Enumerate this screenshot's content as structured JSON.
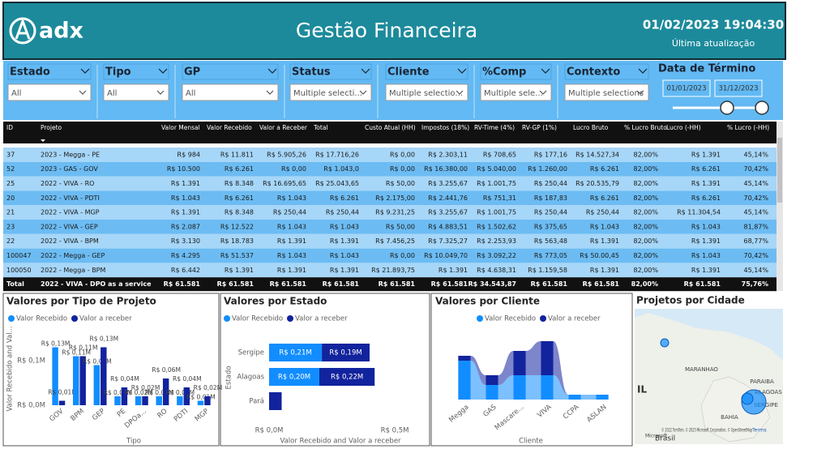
{
  "header": {
    "logo": "adx",
    "title": "Gestão Financeira",
    "timestamp": "01/02/2023 19:04:30",
    "timestamp_label": "Última atualização"
  },
  "filters": [
    {
      "label": "Estado",
      "value": "All"
    },
    {
      "label": "Tipo",
      "value": "All"
    },
    {
      "label": "GP",
      "value": "All"
    },
    {
      "label": "Status",
      "value": "Multiple selecti..."
    },
    {
      "label": "Cliente",
      "value": "Multiple selectio..."
    },
    {
      "label": "%Comp",
      "value": "Multiple sele..."
    },
    {
      "label": "Contexto",
      "value": "Multiple selections"
    }
  ],
  "date_filter": {
    "label": "Data de Término",
    "start": "01/01/2023",
    "end": "31/12/2023"
  },
  "table": {
    "columns": [
      "ID",
      "Projeto",
      "Valor Mensal",
      "Valor Recebido",
      "Valor a Receber",
      "Total",
      "Custo Atual (HH)",
      "Impostos (18%)",
      "RV-Time (4%)",
      "RV-GP (1%)",
      "Lucro Bruto",
      "% Lucro Bruto",
      "Lucro (-HH)",
      "% Lucro (-HH)"
    ],
    "rows": [
      [
        "37",
        "2023 - Megga - PE",
        "R$ 984",
        "R$ 11.811",
        "R$ 5.905,26",
        "R$ 17.716,26",
        "R$ 0,00",
        "R$ 2.303,11",
        "R$ 708,65",
        "R$ 177,16",
        "R$ 14.527,34",
        "82,00%",
        "R$ 1.391",
        "45,14%"
      ],
      [
        "52",
        "2023 - GAS - GOV",
        "R$ 10.500",
        "R$ 6.261",
        "R$ 0,00",
        "R$ 1.043,0",
        "R$ 0,00",
        "R$ 16.380,00",
        "R$ 5.040,00",
        "R$ 1.260,00",
        "R$ 6.261",
        "82,00%",
        "R$ 6.261",
        "70,42%"
      ],
      [
        "25",
        "2022 - VIVA - RO",
        "R$ 1.391",
        "R$ 8.348",
        "R$ 16.695,65",
        "R$ 25.043,65",
        "R$ 50,00",
        "R$ 3.255,67",
        "R$ 1.001,75",
        "R$ 250,44",
        "R$ 20.535,79",
        "82,00%",
        "R$ 1.391",
        "45,14%"
      ],
      [
        "20",
        "2022 - VIVA - PDTI",
        "R$ 1.043",
        "R$ 6.261",
        "R$ 1.043",
        "R$ 6.261",
        "R$ 2.175,00",
        "R$ 2.441,76",
        "R$ 751,31",
        "R$ 187,83",
        "R$ 6.261",
        "82,00%",
        "R$ 6.261",
        "70,42%"
      ],
      [
        "21",
        "2022 - VIVA - MGP",
        "R$ 1.391",
        "R$ 8.348",
        "R$ 250,44",
        "R$ 250,44",
        "R$ 9.231,25",
        "R$ 3.255,67",
        "R$ 1.001,75",
        "R$ 250,44",
        "R$ 250,44",
        "82,00%",
        "R$ 11.304,54",
        "45,14%"
      ],
      [
        "23",
        "2022 - VIVA - GEP",
        "R$ 2.087",
        "R$ 12.522",
        "R$ 1.043",
        "R$ 1.043",
        "R$ 50,00",
        "R$ 4.883,51",
        "R$ 1.502,62",
        "R$ 375,65",
        "R$ 1.043",
        "82,00%",
        "R$ 1.043",
        "81,87%"
      ],
      [
        "22",
        "2022 - VIVA - BPM",
        "R$ 3.130",
        "R$ 18.783",
        "R$ 1.391",
        "R$ 1.391",
        "R$ 7.456,25",
        "R$ 7.325,27",
        "R$ 2.253,93",
        "R$ 563,48",
        "R$ 1.391",
        "82,00%",
        "R$ 1.391",
        "68,77%"
      ],
      [
        "100047",
        "2022 - Megga - GEP",
        "R$ 4.295",
        "R$ 51.537",
        "R$ 1.043",
        "R$ 1.043",
        "R$ 0,00",
        "R$ 10.049,70",
        "R$ 3.092,22",
        "R$ 773,05",
        "R$ 50.00,45",
        "82,00%",
        "R$ 1.043",
        "70,42%"
      ],
      [
        "100050",
        "2022 - Megga - BPM",
        "R$ 6.442",
        "R$ 1.391",
        "R$ 1.391",
        "R$ 1.391",
        "R$ 21.893,75",
        "R$ 1.391",
        "R$ 4.638,31",
        "R$ 1.159,58",
        "R$ 1.391",
        "82,00%",
        "R$ 1.391",
        "45,14%"
      ]
    ],
    "total": [
      "Total",
      "2022 - VIVA - DPO as a service",
      "R$ 61.581",
      "R$ 61.581",
      "R$ 61.581",
      "R$ 61.581",
      "R$ 61.581",
      "R$ 61.581",
      "R$ 34.543,87",
      "R$ 61.581",
      "R$ 61.581",
      "82,00%",
      "R$ 61.581",
      "75,76%"
    ]
  },
  "chart_data": [
    {
      "type": "bar",
      "title": "Valores por Tipo de Projeto",
      "x_label": "Tipo",
      "y_label": "Valor Recebido and Val...",
      "categories": [
        "GOV",
        "BPM",
        "GEP",
        "PE",
        "DPOa...",
        "RO",
        "PDTI",
        "MGP"
      ],
      "series": [
        {
          "name": "Valor Recebido",
          "color": "#118dff",
          "values": [
            0.13,
            0.11,
            0.09,
            0.02,
            0.02,
            0.02,
            0.02,
            0.01
          ],
          "value_labels": [
            "R$ 0,13M",
            "R$ 0,11M",
            "R$ 0,09M",
            "R$ 0,02M",
            "R$ 0,02M",
            "R$ 0,02M",
            "R$ 0,02M",
            "R$ 0,01M"
          ]
        },
        {
          "name": "Valor a receber",
          "color": "#12239e",
          "values": [
            0.01,
            0.11,
            0.13,
            0.04,
            0.02,
            0.06,
            0.04,
            0.02
          ],
          "value_labels": [
            "R$ 0,01M",
            "R$ 0,11M",
            "R$ 0,13M",
            "R$ 0,04M",
            "R$ 0,02M",
            "R$ 0,06M",
            "R$ 0,04M",
            "R$ 0,02M"
          ]
        }
      ],
      "ylim": [
        0,
        0.15
      ],
      "yticks": [
        {
          "value": 0,
          "label": "R$ 0,0M"
        },
        {
          "value": 0.1,
          "label": "R$ 0,1M"
        }
      ],
      "grid": false
    },
    {
      "type": "bar",
      "orientation": "horizontal",
      "stacked": true,
      "title": "Valores por Estado",
      "x_label": "Valor Recebido and Valor a receber",
      "y_label": "Estado",
      "categories": [
        "Sergipe",
        "Alagoas",
        "Pará"
      ],
      "series": [
        {
          "name": "Valor Recebido",
          "color": "#118dff",
          "values": [
            0.21,
            0.2,
            null
          ],
          "value_labels": [
            "R$ 0,21M",
            "R$ 0,20M",
            null
          ]
        },
        {
          "name": "Valor a receber",
          "color": "#12239e",
          "values": [
            0.19,
            0.22,
            0.05
          ],
          "value_labels": [
            "R$ 0,19M",
            "R$ 0,22M",
            null
          ]
        }
      ],
      "xlim": [
        0,
        0.5
      ],
      "xticks": [
        {
          "value": 0,
          "label": "R$ 0,0M"
        },
        {
          "value": 0.5,
          "label": "R$ 0,5M"
        }
      ],
      "grid": false
    },
    {
      "type": "ribbon",
      "title": "Valores por Cliente",
      "x_label": "Cliente",
      "categories": [
        "Megga",
        "GAS",
        "Mascare...",
        "VIVA",
        "CCPA",
        "ASLAN"
      ],
      "series": [
        {
          "name": "Valor Recebido",
          "color": "#118dff",
          "values": [
            0.08,
            0.03,
            0.05,
            0.05,
            0.01,
            0.01
          ]
        },
        {
          "name": "Valor a receber",
          "color": "#12239e",
          "values": [
            0.01,
            0.02,
            0.05,
            0.07,
            0.0,
            0.0
          ]
        }
      ]
    }
  ],
  "map": {
    "title": "Projetos por Cidade",
    "labels": [
      "MARANHAO",
      "PARAIBA",
      "ALAGOAS",
      "SERGIPE",
      "BAHIA",
      "IL",
      "Brasil"
    ],
    "attribution": "© 2022 TomTom, © 2023 Microsoft Corporation, © OpenStreetMap",
    "terms": "Terms",
    "brand": "Microsoft"
  }
}
